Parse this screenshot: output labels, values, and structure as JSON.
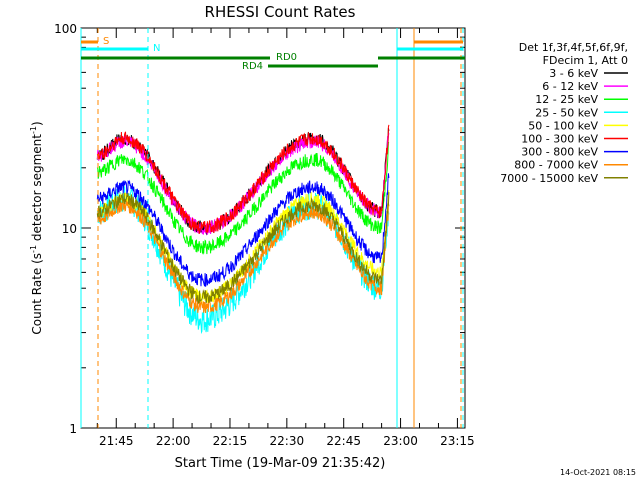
{
  "chart_data": {
    "type": "line",
    "title": "RHESSI Count Rates",
    "xlabel": "Start Time (19-Mar-09 21:35:42)",
    "ylabel_main": "Count Rate (s",
    "ylabel_sup1": "-1",
    "ylabel_mid": " detector segment",
    "ylabel_sup2": "-1",
    "ylabel_end": ")",
    "y_scale": "log",
    "ylim": [
      1,
      100
    ],
    "xlim": [
      "21:35:42",
      "23:17:00"
    ],
    "x_ticks": [
      "21:45",
      "22:00",
      "22:15",
      "22:30",
      "22:45",
      "23:00",
      "23:15"
    ],
    "y_ticks": [
      "1",
      "10",
      "100"
    ],
    "legend_header": [
      "Det 1f,3f,4f,5f,6f,9f,",
      "FDecim 1, Att 0"
    ],
    "legend_position": "right",
    "series": [
      {
        "name": "3 - 6 keV",
        "color": "#000000",
        "values": [
          23,
          28,
          10,
          28,
          12
        ]
      },
      {
        "name": "6 - 12 keV",
        "color": "#ff00ff",
        "values": [
          23,
          27,
          10,
          27,
          12
        ]
      },
      {
        "name": "12 - 25 keV",
        "color": "#00ff00",
        "values": [
          19,
          22,
          8,
          22,
          10
        ]
      },
      {
        "name": "25 - 50 keV",
        "color": "#00ffff",
        "values": [
          12,
          14,
          3.5,
          13,
          5
        ]
      },
      {
        "name": "50 - 100 keV",
        "color": "#ffff00",
        "values": [
          12,
          14,
          4.5,
          14,
          6
        ]
      },
      {
        "name": "100 - 300 keV",
        "color": "#ff0000",
        "values": [
          23,
          28,
          10,
          28,
          12
        ]
      },
      {
        "name": "300 - 800 keV",
        "color": "#0000ff",
        "values": [
          14,
          16,
          5.5,
          16,
          7
        ]
      },
      {
        "name": "800 - 7000 keV",
        "color": "#ff8800",
        "values": [
          11,
          13,
          4,
          12,
          5
        ]
      },
      {
        "name": "7000 - 15000 keV",
        "color": "#808000",
        "values": [
          12,
          14,
          4.5,
          13,
          5.5
        ]
      }
    ],
    "flags": {
      "S": "S",
      "N": "N",
      "RD0": "RD0",
      "RD4": "RD4"
    },
    "timestamp": "14-Oct-2021 08:15"
  }
}
